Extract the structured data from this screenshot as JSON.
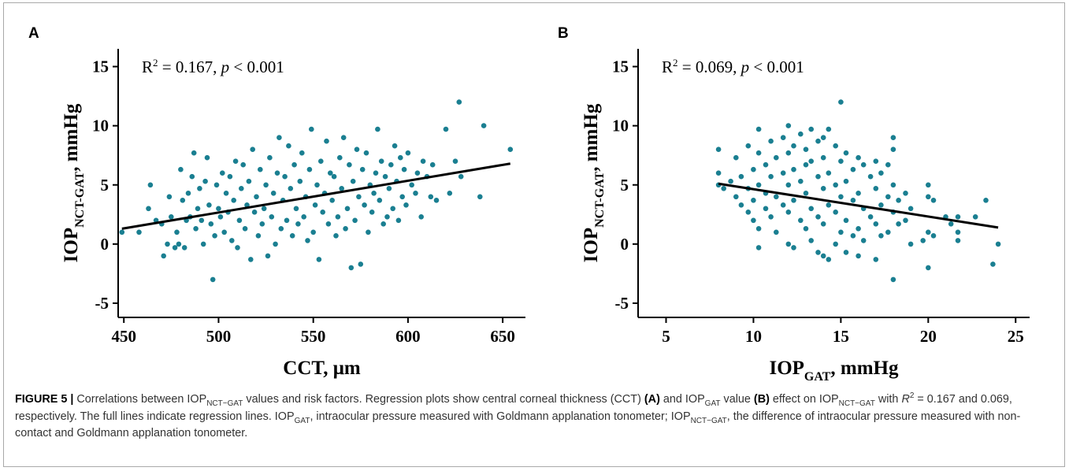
{
  "panels": [
    {
      "letter": "A",
      "stat_r2": "R",
      "stat_sup": "2",
      "stat_eq": " = 0.167, ",
      "stat_p": "p",
      "stat_tail": " < 0.001",
      "ylabel_main": "IOP",
      "ylabel_sub": "NCT-GAT",
      "ylabel_tail": ", mmHg",
      "xlabel_main": "CCT, μm",
      "xlabel_sub": "",
      "xlabel_tail": ""
    },
    {
      "letter": "B",
      "stat_r2": "R",
      "stat_sup": "2",
      "stat_eq": " = 0.069, ",
      "stat_p": "p",
      "stat_tail": " < 0.001",
      "ylabel_main": "IOP",
      "ylabel_sub": "NCT-GAT",
      "ylabel_tail": ", mmHg",
      "xlabel_main": "IOP",
      "xlabel_sub": "GAT",
      "xlabel_tail": ", mmHg"
    }
  ],
  "caption": {
    "fig_label": "FIGURE 5 |",
    "t1": " Correlations between IOP",
    "s1": "NCT−GAT",
    "t2": " values and risk factors. Regression plots show central corneal thickness (CCT) ",
    "bA": "(A)",
    "t3": " and IOP",
    "s2": "GAT",
    "t4": " value ",
    "bB": "(B)",
    "t5": " effect on IOP",
    "s3": "NCT−GAT",
    "t6": " with ",
    "r": "R",
    "r_sup": "2",
    "t7": " = 0.167 and 0.069, respectively. The full lines indicate regression lines. IOP",
    "s4": "GAT",
    "t8": ", intraocular pressure measured with Goldmann applanation tonometer; IOP",
    "s5": "NCT−GAT",
    "t9": ", the difference of intraocular pressure measured with non-contact and Goldmann applanation tonometer."
  },
  "colors": {
    "points": "#1a7f91",
    "line": "#000000",
    "axis": "#000000"
  },
  "chart_data": [
    {
      "type": "scatter",
      "xlim": [
        447,
        662
      ],
      "ylim": [
        -6.2,
        16.5
      ],
      "xticks": [
        450,
        500,
        550,
        600,
        650
      ],
      "yticks": [
        -5,
        0,
        5,
        10,
        15
      ],
      "xtick_labels": [
        "450",
        "500",
        "550",
        "600",
        "650"
      ],
      "ytick_labels": [
        "-5",
        "0",
        "5",
        "10",
        "15"
      ],
      "regression_line": {
        "x": [
          449,
          654
        ],
        "y": [
          1.3,
          6.8
        ]
      },
      "points": [
        [
          449,
          1.0
        ],
        [
          458,
          1.0
        ],
        [
          463,
          3.0
        ],
        [
          464,
          5.0
        ],
        [
          467,
          2.0
        ],
        [
          470,
          1.7
        ],
        [
          471,
          -1.0
        ],
        [
          473,
          0.0
        ],
        [
          474,
          4.0
        ],
        [
          475,
          2.3
        ],
        [
          477,
          -0.3
        ],
        [
          478,
          1.0
        ],
        [
          479,
          0.0
        ],
        [
          480,
          6.3
        ],
        [
          481,
          3.7
        ],
        [
          482,
          -0.3
        ],
        [
          483,
          2.0
        ],
        [
          484,
          4.3
        ],
        [
          485,
          2.3
        ],
        [
          486,
          5.7
        ],
        [
          487,
          7.7
        ],
        [
          488,
          1.3
        ],
        [
          489,
          3.0
        ],
        [
          490,
          4.7
        ],
        [
          491,
          2.0
        ],
        [
          492,
          0.0
        ],
        [
          493,
          5.3
        ],
        [
          494,
          7.3
        ],
        [
          495,
          3.3
        ],
        [
          496,
          1.7
        ],
        [
          497,
          -3.0
        ],
        [
          498,
          0.7
        ],
        [
          499,
          5.0
        ],
        [
          500,
          3.0
        ],
        [
          501,
          2.3
        ],
        [
          502,
          6.0
        ],
        [
          503,
          1.0
        ],
        [
          504,
          4.3
        ],
        [
          505,
          2.7
        ],
        [
          506,
          5.7
        ],
        [
          507,
          0.3
        ],
        [
          508,
          3.7
        ],
        [
          509,
          7.0
        ],
        [
          510,
          -0.3
        ],
        [
          511,
          2.0
        ],
        [
          512,
          4.7
        ],
        [
          513,
          6.7
        ],
        [
          514,
          1.3
        ],
        [
          515,
          3.3
        ],
        [
          516,
          5.3
        ],
        [
          517,
          -1.3
        ],
        [
          518,
          8.0
        ],
        [
          519,
          2.7
        ],
        [
          520,
          4.0
        ],
        [
          521,
          0.7
        ],
        [
          522,
          6.3
        ],
        [
          523,
          1.7
        ],
        [
          524,
          3.0
        ],
        [
          525,
          5.0
        ],
        [
          526,
          -1.0
        ],
        [
          527,
          7.3
        ],
        [
          528,
          2.3
        ],
        [
          529,
          4.3
        ],
        [
          530,
          0.0
        ],
        [
          531,
          6.0
        ],
        [
          532,
          9.0
        ],
        [
          533,
          1.3
        ],
        [
          534,
          3.7
        ],
        [
          535,
          5.7
        ],
        [
          536,
          2.0
        ],
        [
          537,
          8.3
        ],
        [
          538,
          4.7
        ],
        [
          539,
          0.7
        ],
        [
          540,
          6.7
        ],
        [
          541,
          3.0
        ],
        [
          542,
          1.7
        ],
        [
          543,
          5.3
        ],
        [
          544,
          7.7
        ],
        [
          545,
          2.3
        ],
        [
          546,
          4.0
        ],
        [
          547,
          0.3
        ],
        [
          548,
          6.3
        ],
        [
          549,
          9.7
        ],
        [
          550,
          1.0
        ],
        [
          551,
          3.3
        ],
        [
          552,
          5.0
        ],
        [
          553,
          -1.3
        ],
        [
          554,
          7.0
        ],
        [
          555,
          2.7
        ],
        [
          556,
          4.3
        ],
        [
          557,
          8.7
        ],
        [
          558,
          1.7
        ],
        [
          559,
          6.0
        ],
        [
          560,
          3.7
        ],
        [
          561,
          5.7
        ],
        [
          562,
          0.7
        ],
        [
          563,
          2.3
        ],
        [
          564,
          7.3
        ],
        [
          565,
          4.7
        ],
        [
          566,
          9.0
        ],
        [
          567,
          1.3
        ],
        [
          568,
          3.0
        ],
        [
          569,
          6.7
        ],
        [
          570,
          -2.0
        ],
        [
          571,
          5.3
        ],
        [
          572,
          2.0
        ],
        [
          573,
          8.0
        ],
        [
          574,
          4.0
        ],
        [
          575,
          -1.7
        ],
        [
          576,
          6.3
        ],
        [
          577,
          3.3
        ],
        [
          578,
          7.7
        ],
        [
          579,
          1.0
        ],
        [
          580,
          5.0
        ],
        [
          581,
          2.7
        ],
        [
          582,
          4.3
        ],
        [
          583,
          6.0
        ],
        [
          584,
          9.7
        ],
        [
          585,
          3.7
        ],
        [
          586,
          7.0
        ],
        [
          587,
          1.7
        ],
        [
          588,
          5.7
        ],
        [
          589,
          2.3
        ],
        [
          590,
          4.7
        ],
        [
          591,
          6.7
        ],
        [
          592,
          3.0
        ],
        [
          593,
          8.3
        ],
        [
          594,
          5.3
        ],
        [
          595,
          2.0
        ],
        [
          596,
          7.3
        ],
        [
          597,
          4.0
        ],
        [
          598,
          6.3
        ],
        [
          599,
          3.3
        ],
        [
          600,
          7.7
        ],
        [
          602,
          5.0
        ],
        [
          604,
          4.3
        ],
        [
          605,
          6.0
        ],
        [
          607,
          2.3
        ],
        [
          608,
          7.0
        ],
        [
          610,
          5.7
        ],
        [
          612,
          4.0
        ],
        [
          613,
          6.7
        ],
        [
          615,
          3.7
        ],
        [
          620,
          9.7
        ],
        [
          622,
          4.3
        ],
        [
          625,
          7.0
        ],
        [
          627,
          12.0
        ],
        [
          628,
          5.7
        ],
        [
          638,
          4.0
        ],
        [
          640,
          10.0
        ],
        [
          654,
          8.0
        ]
      ]
    },
    {
      "type": "scatter",
      "xlim": [
        3.4,
        25.8
      ],
      "ylim": [
        -6.2,
        16.5
      ],
      "xticks": [
        5,
        10,
        15,
        20,
        25
      ],
      "yticks": [
        -5,
        0,
        5,
        10,
        15
      ],
      "xtick_labels": [
        "5",
        "10",
        "15",
        "20",
        "25"
      ],
      "ytick_labels": [
        "-5",
        "0",
        "5",
        "10",
        "15"
      ],
      "regression_line": {
        "x": [
          8,
          24
        ],
        "y": [
          5.1,
          1.4
        ]
      },
      "points": [
        [
          8.0,
          8.0
        ],
        [
          8.0,
          6.0
        ],
        [
          8.0,
          5.0
        ],
        [
          8.3,
          4.7
        ],
        [
          8.7,
          5.3
        ],
        [
          9.0,
          4.0
        ],
        [
          9.0,
          7.3
        ],
        [
          9.3,
          3.3
        ],
        [
          9.3,
          5.7
        ],
        [
          9.7,
          8.3
        ],
        [
          9.7,
          2.7
        ],
        [
          9.7,
          4.7
        ],
        [
          10.0,
          6.3
        ],
        [
          10.0,
          3.7
        ],
        [
          10.0,
          2.0
        ],
        [
          10.3,
          9.7
        ],
        [
          10.3,
          7.7
        ],
        [
          10.3,
          5.0
        ],
        [
          10.3,
          1.3
        ],
        [
          10.3,
          -0.3
        ],
        [
          10.7,
          6.7
        ],
        [
          10.7,
          4.3
        ],
        [
          10.7,
          3.0
        ],
        [
          11.0,
          8.7
        ],
        [
          11.0,
          5.7
        ],
        [
          11.0,
          2.3
        ],
        [
          11.3,
          7.3
        ],
        [
          11.3,
          4.0
        ],
        [
          11.3,
          1.0
        ],
        [
          11.7,
          9.0
        ],
        [
          11.7,
          6.0
        ],
        [
          11.7,
          3.3
        ],
        [
          12.0,
          10.0
        ],
        [
          12.0,
          7.7
        ],
        [
          12.0,
          5.0
        ],
        [
          12.0,
          2.7
        ],
        [
          12.0,
          0.0
        ],
        [
          12.3,
          8.3
        ],
        [
          12.3,
          6.3
        ],
        [
          12.3,
          3.7
        ],
        [
          12.3,
          -0.3
        ],
        [
          12.7,
          9.3
        ],
        [
          12.7,
          5.3
        ],
        [
          12.7,
          2.0
        ],
        [
          13.0,
          8.0
        ],
        [
          13.0,
          6.7
        ],
        [
          13.0,
          4.3
        ],
        [
          13.0,
          1.3
        ],
        [
          13.3,
          9.7
        ],
        [
          13.3,
          7.0
        ],
        [
          13.3,
          3.0
        ],
        [
          13.3,
          0.3
        ],
        [
          13.7,
          8.7
        ],
        [
          13.7,
          5.7
        ],
        [
          13.7,
          2.3
        ],
        [
          13.7,
          -0.7
        ],
        [
          14.0,
          9.0
        ],
        [
          14.0,
          7.3
        ],
        [
          14.0,
          4.7
        ],
        [
          14.0,
          1.7
        ],
        [
          14.0,
          -1.0
        ],
        [
          14.3,
          9.7
        ],
        [
          14.3,
          6.0
        ],
        [
          14.3,
          3.3
        ],
        [
          14.3,
          -1.3
        ],
        [
          14.7,
          8.3
        ],
        [
          14.7,
          5.0
        ],
        [
          14.7,
          2.7
        ],
        [
          14.7,
          0.0
        ],
        [
          15.0,
          12.0
        ],
        [
          15.0,
          7.0
        ],
        [
          15.0,
          4.0
        ],
        [
          15.0,
          1.0
        ],
        [
          15.3,
          7.7
        ],
        [
          15.3,
          5.3
        ],
        [
          15.3,
          2.0
        ],
        [
          15.3,
          -0.7
        ],
        [
          15.7,
          6.3
        ],
        [
          15.7,
          3.7
        ],
        [
          15.7,
          0.7
        ],
        [
          16.0,
          7.3
        ],
        [
          16.0,
          4.3
        ],
        [
          16.0,
          1.3
        ],
        [
          16.0,
          -1.0
        ],
        [
          16.3,
          6.7
        ],
        [
          16.3,
          3.0
        ],
        [
          16.3,
          0.3
        ],
        [
          16.7,
          5.7
        ],
        [
          16.7,
          2.3
        ],
        [
          17.0,
          7.0
        ],
        [
          17.0,
          4.7
        ],
        [
          17.0,
          1.7
        ],
        [
          17.0,
          -1.3
        ],
        [
          17.3,
          6.0
        ],
        [
          17.3,
          3.3
        ],
        [
          17.3,
          0.7
        ],
        [
          17.7,
          6.7
        ],
        [
          17.7,
          4.0
        ],
        [
          17.7,
          1.0
        ],
        [
          18.0,
          9.0
        ],
        [
          18.0,
          8.0
        ],
        [
          18.0,
          5.0
        ],
        [
          18.0,
          2.7
        ],
        [
          18.0,
          -3.0
        ],
        [
          18.3,
          3.7
        ],
        [
          18.3,
          1.7
        ],
        [
          18.7,
          4.3
        ],
        [
          18.7,
          2.0
        ],
        [
          19.0,
          3.0
        ],
        [
          19.0,
          0.0
        ],
        [
          19.7,
          0.3
        ],
        [
          20.0,
          5.0
        ],
        [
          20.0,
          4.0
        ],
        [
          20.0,
          1.0
        ],
        [
          20.0,
          -2.0
        ],
        [
          20.3,
          0.7
        ],
        [
          20.3,
          3.7
        ],
        [
          21.0,
          2.3
        ],
        [
          21.3,
          1.7
        ],
        [
          21.7,
          2.3
        ],
        [
          21.7,
          1.0
        ],
        [
          21.7,
          0.3
        ],
        [
          22.7,
          2.3
        ],
        [
          23.3,
          3.7
        ],
        [
          23.7,
          -1.7
        ],
        [
          24.0,
          0.0
        ]
      ]
    }
  ]
}
